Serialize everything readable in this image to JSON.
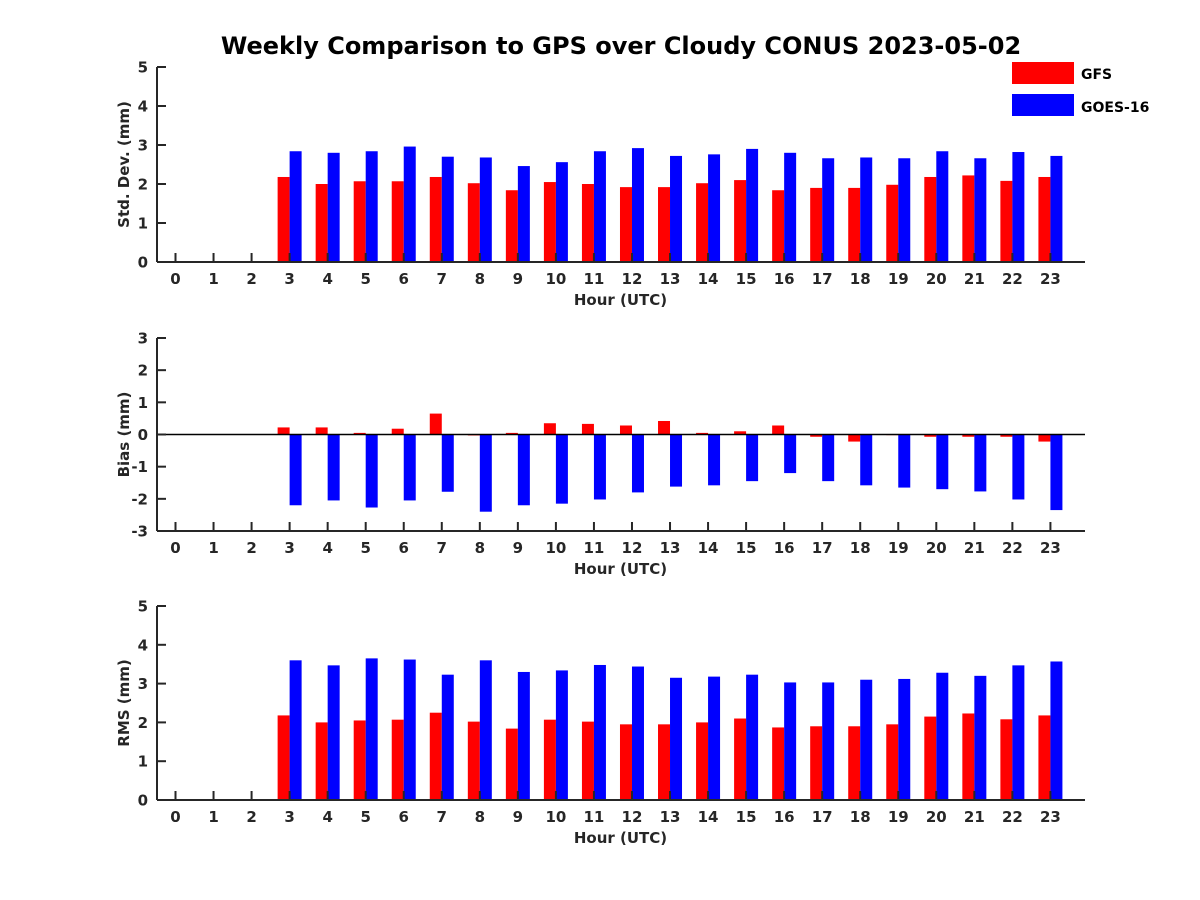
{
  "title": "Weekly Comparison to GPS over Cloudy CONUS 2023-05-02",
  "colors": {
    "GFS": "#ff0000",
    "GOES-16": "#0000ff"
  },
  "legend": [
    {
      "name": "GFS",
      "color": "#ff0000"
    },
    {
      "name": "GOES-16",
      "color": "#0000ff"
    }
  ],
  "chart_data": [
    {
      "type": "bar",
      "id": "std",
      "ylabel": "Std. Dev. (mm)",
      "xlabel": "Hour (UTC)",
      "ylim": [
        0,
        5
      ],
      "yticks": [
        0,
        1,
        2,
        3,
        4,
        5
      ],
      "categories": [
        0,
        1,
        2,
        3,
        4,
        5,
        6,
        7,
        8,
        9,
        10,
        11,
        12,
        13,
        14,
        15,
        16,
        17,
        18,
        19,
        20,
        21,
        22,
        23
      ],
      "series": [
        {
          "name": "GFS",
          "values": [
            null,
            null,
            null,
            2.18,
            2.0,
            2.07,
            2.07,
            2.18,
            2.02,
            1.84,
            2.05,
            2.0,
            1.92,
            1.92,
            2.02,
            2.1,
            1.84,
            1.9,
            1.9,
            1.98,
            2.18,
            2.22,
            2.08,
            2.18
          ]
        },
        {
          "name": "GOES-16",
          "values": [
            null,
            null,
            null,
            2.84,
            2.8,
            2.84,
            2.96,
            2.7,
            2.68,
            2.46,
            2.56,
            2.84,
            2.92,
            2.72,
            2.76,
            2.9,
            2.8,
            2.66,
            2.68,
            2.66,
            2.84,
            2.66,
            2.82,
            2.72
          ]
        }
      ]
    },
    {
      "type": "bar",
      "id": "bias",
      "ylabel": "Bias (mm)",
      "xlabel": "Hour (UTC)",
      "ylim": [
        -3,
        3
      ],
      "yticks": [
        -3,
        -2,
        -1,
        0,
        1,
        2,
        3
      ],
      "categories": [
        0,
        1,
        2,
        3,
        4,
        5,
        6,
        7,
        8,
        9,
        10,
        11,
        12,
        13,
        14,
        15,
        16,
        17,
        18,
        19,
        20,
        21,
        22,
        23
      ],
      "series": [
        {
          "name": "GFS",
          "values": [
            null,
            null,
            null,
            0.22,
            0.22,
            0.05,
            0.18,
            0.65,
            -0.03,
            0.05,
            0.35,
            0.33,
            0.28,
            0.42,
            0.05,
            0.1,
            0.28,
            -0.07,
            -0.22,
            -0.02,
            -0.07,
            -0.07,
            -0.07,
            -0.22
          ]
        },
        {
          "name": "GOES-16",
          "values": [
            null,
            null,
            null,
            -2.2,
            -2.05,
            -2.27,
            -2.05,
            -1.78,
            -2.4,
            -2.2,
            -2.15,
            -2.02,
            -1.8,
            -1.62,
            -1.58,
            -1.45,
            -1.2,
            -1.45,
            -1.58,
            -1.65,
            -1.7,
            -1.77,
            -2.02,
            -2.35
          ]
        }
      ]
    },
    {
      "type": "bar",
      "id": "rms",
      "ylabel": "RMS (mm)",
      "xlabel": "Hour (UTC)",
      "ylim": [
        0,
        5
      ],
      "yticks": [
        0,
        1,
        2,
        3,
        4,
        5
      ],
      "categories": [
        0,
        1,
        2,
        3,
        4,
        5,
        6,
        7,
        8,
        9,
        10,
        11,
        12,
        13,
        14,
        15,
        16,
        17,
        18,
        19,
        20,
        21,
        22,
        23
      ],
      "series": [
        {
          "name": "GFS",
          "values": [
            null,
            null,
            null,
            2.18,
            2.0,
            2.05,
            2.07,
            2.25,
            2.02,
            1.84,
            2.07,
            2.02,
            1.95,
            1.95,
            2.0,
            2.1,
            1.87,
            1.9,
            1.9,
            1.95,
            2.15,
            2.23,
            2.08,
            2.18
          ]
        },
        {
          "name": "GOES-16",
          "values": [
            null,
            null,
            null,
            3.6,
            3.47,
            3.65,
            3.62,
            3.23,
            3.6,
            3.3,
            3.34,
            3.48,
            3.44,
            3.15,
            3.18,
            3.23,
            3.03,
            3.03,
            3.1,
            3.12,
            3.28,
            3.2,
            3.47,
            3.57
          ]
        }
      ]
    }
  ]
}
